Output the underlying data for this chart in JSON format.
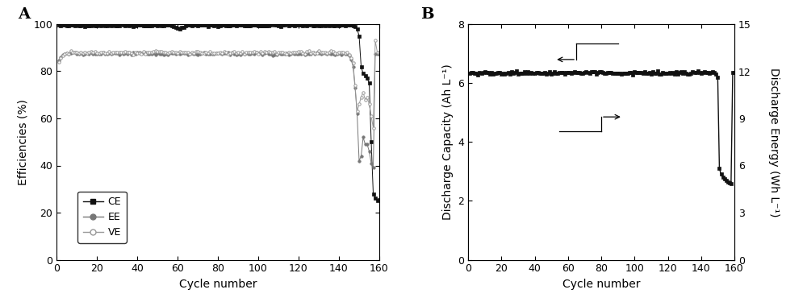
{
  "panel_A": {
    "label": "A",
    "xlabel": "Cycle number",
    "ylabel": "Efficiencies (%)",
    "xlim": [
      0,
      160
    ],
    "ylim": [
      0,
      100
    ],
    "xticks": [
      0,
      20,
      40,
      60,
      80,
      100,
      120,
      140,
      160
    ],
    "yticks": [
      0,
      20,
      40,
      60,
      80,
      100
    ],
    "CE_color": "#111111",
    "EE_color": "#777777",
    "VE_color": "#999999",
    "legend_entries": [
      "CE",
      "EE",
      "VE"
    ]
  },
  "panel_B": {
    "label": "B",
    "xlabel": "Cycle number",
    "ylabel": "Discharge Capacity (Ah L⁻¹)",
    "ylabel2": "Discharge Energy (Wh L⁻¹)",
    "xlim": [
      0,
      160
    ],
    "ylim": [
      0,
      8
    ],
    "ylim2": [
      0,
      15
    ],
    "xticks": [
      0,
      20,
      40,
      60,
      80,
      100,
      120,
      140,
      160
    ],
    "yticks": [
      0,
      2,
      4,
      6,
      8
    ],
    "yticks2": [
      0,
      3,
      6,
      9,
      12,
      15
    ],
    "cap_color": "#111111",
    "energy_color": "#888888"
  }
}
